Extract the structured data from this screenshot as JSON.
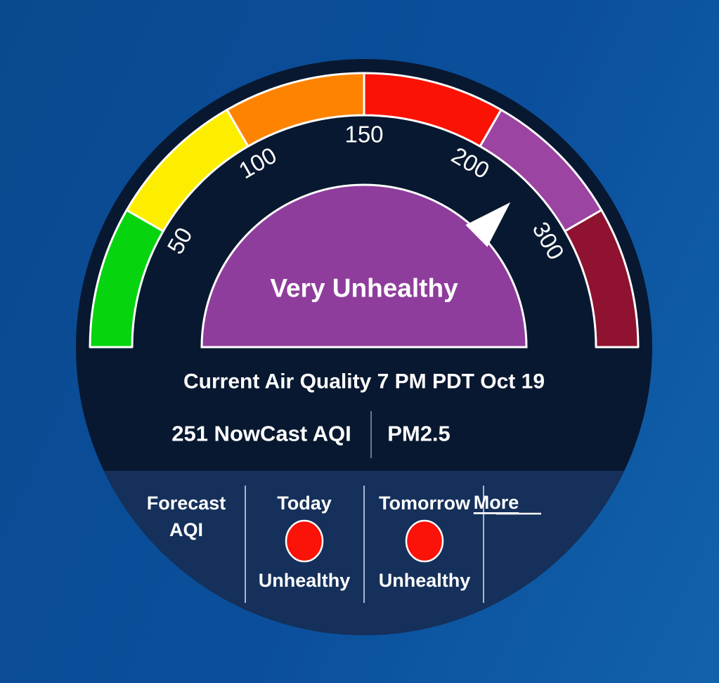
{
  "colors": {
    "dial_circle": "#081830",
    "forecast_panel": "#15305a",
    "middle_divider": "#66799a",
    "panel_divider": "#a9b7cc",
    "needle": "#ffffff"
  },
  "gauge": {
    "category_label": "Very Unhealthy",
    "category_fill": "#8f3d9c"
  },
  "current": {
    "title": "Current Air Quality 7 PM PDT Oct 19",
    "aqi_text": "251 NowCast AQI",
    "pollutant": "PM2.5"
  },
  "forecast": {
    "heading_line1": "Forecast",
    "heading_line2": "AQI",
    "days": [
      {
        "label": "Today",
        "category": "Unhealthy",
        "dot_color": "#fb1209"
      },
      {
        "label": "Tomorrow",
        "category": "Unhealthy",
        "dot_color": "#fb1209"
      }
    ],
    "more_label": "More"
  },
  "chart_data": {
    "type": "gauge",
    "title": "Current Air Quality 7 PM PDT Oct 19",
    "value": 251,
    "value_label": "251 NowCast AQI",
    "pollutant": "PM2.5",
    "category": "Very Unhealthy",
    "range": [
      0,
      500
    ],
    "axis_ticks": [
      50,
      100,
      150,
      200,
      300
    ],
    "legend": "equal 30-degree arc per AQI category, semicircular dial",
    "segments": [
      {
        "name": "good",
        "from": 0,
        "to": 50,
        "color": "#06d40f"
      },
      {
        "name": "moderate",
        "from": 50,
        "to": 100,
        "color": "#fdee00"
      },
      {
        "name": "unhealthy-for-sensitive-groups",
        "from": 100,
        "to": 150,
        "color": "#fe8301"
      },
      {
        "name": "unhealthy",
        "from": 150,
        "to": 200,
        "color": "#fa1205"
      },
      {
        "name": "very-unhealthy",
        "from": 200,
        "to": 300,
        "color": "#9b44a2"
      },
      {
        "name": "hazardous",
        "from": 300,
        "to": 500,
        "color": "#8f1230"
      }
    ],
    "forecast": [
      {
        "day": "Today",
        "category": "Unhealthy"
      },
      {
        "day": "Tomorrow",
        "category": "Unhealthy"
      }
    ]
  }
}
